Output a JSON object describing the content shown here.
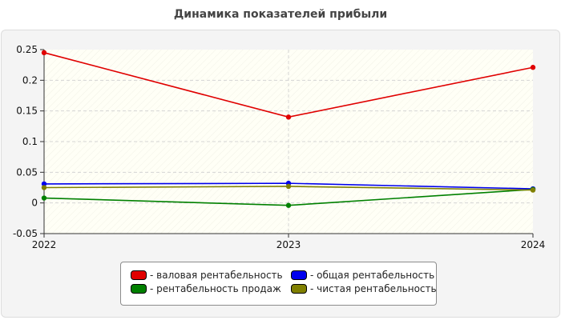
{
  "chart_data": {
    "type": "line",
    "title": "Динамика показателей прибыли",
    "x": [
      "2022",
      "2023",
      "2024"
    ],
    "ylim": [
      -0.05,
      0.25
    ],
    "yticks": [
      "0.25",
      "0.2",
      "0.15",
      "0.1",
      "0.05",
      "0",
      "-0.05"
    ],
    "grid": true,
    "legend_position": "bottom-center",
    "series": [
      {
        "name": "- валовая рентабельность",
        "color": "#e00000",
        "values": [
          0.245,
          0.14,
          0.221
        ]
      },
      {
        "name": "- общая рентабельность",
        "color": "#0000ee",
        "values": [
          0.031,
          0.032,
          0.023
        ]
      },
      {
        "name": "- рентабельность продаж",
        "color": "#008000",
        "values": [
          0.008,
          -0.004,
          0.022
        ]
      },
      {
        "name": "- чистая рентабельность",
        "color": "#808000",
        "values": [
          0.025,
          0.027,
          0.021
        ]
      }
    ]
  }
}
